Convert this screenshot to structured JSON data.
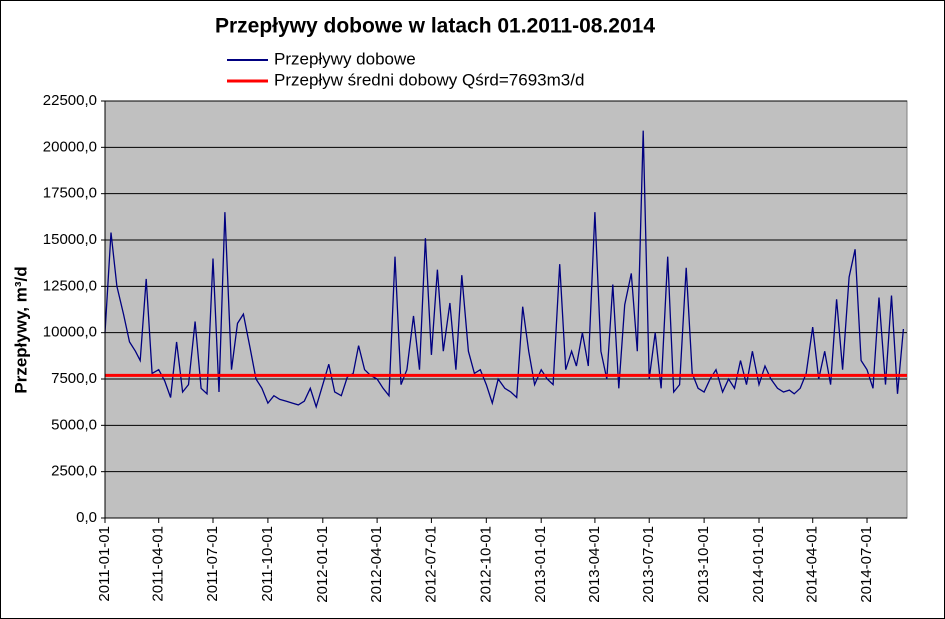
{
  "chart_data": {
    "type": "line",
    "title": "Przepływy dobowe w latach 01.2011-08.2014",
    "ylabel": "Przepływy, m³/d",
    "xlim": [
      "2011-01-01",
      "2014-09-06"
    ],
    "xticks": [
      "2011-01-01",
      "2011-04-01",
      "2011-07-01",
      "2011-10-01",
      "2012-01-01",
      "2012-04-01",
      "2012-07-01",
      "2012-10-01",
      "2013-01-01",
      "2013-04-01",
      "2013-07-01",
      "2013-10-01",
      "2014-01-01",
      "2014-04-01",
      "2014-07-01"
    ],
    "ylim": [
      0,
      22500
    ],
    "yticks": [
      {
        "value": 0,
        "label": "0,0"
      },
      {
        "value": 2500,
        "label": "2500,0"
      },
      {
        "value": 5000,
        "label": "5000,0"
      },
      {
        "value": 7500,
        "label": "7500,0"
      },
      {
        "value": 10000,
        "label": "10000,0"
      },
      {
        "value": 12500,
        "label": "12500,0"
      },
      {
        "value": 15000,
        "label": "15000,0"
      },
      {
        "value": 17500,
        "label": "17500,0"
      },
      {
        "value": 20000,
        "label": "20000,0"
      },
      {
        "value": 22500,
        "label": "22500,0"
      }
    ],
    "grid": true,
    "x": [
      "2011-01-01",
      "2011-01-11",
      "2011-01-21",
      "2011-02-01",
      "2011-02-11",
      "2011-02-21",
      "2011-03-01",
      "2011-03-11",
      "2011-03-21",
      "2011-04-01",
      "2011-04-11",
      "2011-04-21",
      "2011-05-01",
      "2011-05-11",
      "2011-05-21",
      "2011-06-01",
      "2011-06-11",
      "2011-06-21",
      "2011-07-01",
      "2011-07-11",
      "2011-07-21",
      "2011-08-01",
      "2011-08-11",
      "2011-08-21",
      "2011-09-01",
      "2011-09-11",
      "2011-09-21",
      "2011-10-01",
      "2011-10-11",
      "2011-10-21",
      "2011-11-01",
      "2011-11-11",
      "2011-11-21",
      "2011-12-01",
      "2011-12-11",
      "2011-12-21",
      "2012-01-01",
      "2012-01-11",
      "2012-01-21",
      "2012-02-01",
      "2012-02-11",
      "2012-02-21",
      "2012-03-01",
      "2012-03-11",
      "2012-03-21",
      "2012-04-01",
      "2012-04-11",
      "2012-04-21",
      "2012-05-01",
      "2012-05-11",
      "2012-05-21",
      "2012-06-01",
      "2012-06-11",
      "2012-06-21",
      "2012-07-01",
      "2012-07-11",
      "2012-07-21",
      "2012-08-01",
      "2012-08-11",
      "2012-08-21",
      "2012-09-01",
      "2012-09-11",
      "2012-09-21",
      "2012-10-01",
      "2012-10-11",
      "2012-10-21",
      "2012-11-01",
      "2012-11-11",
      "2012-11-21",
      "2012-12-01",
      "2012-12-11",
      "2012-12-21",
      "2013-01-01",
      "2013-01-11",
      "2013-01-21",
      "2013-02-01",
      "2013-02-11",
      "2013-02-21",
      "2013-03-01",
      "2013-03-11",
      "2013-03-21",
      "2013-04-01",
      "2013-04-11",
      "2013-04-21",
      "2013-05-01",
      "2013-05-11",
      "2013-05-21",
      "2013-06-01",
      "2013-06-11",
      "2013-06-21",
      "2013-07-01",
      "2013-07-11",
      "2013-07-21",
      "2013-08-01",
      "2013-08-11",
      "2013-08-21",
      "2013-09-01",
      "2013-09-11",
      "2013-09-21",
      "2013-10-01",
      "2013-10-11",
      "2013-10-21",
      "2013-11-01",
      "2013-11-11",
      "2013-11-21",
      "2013-12-01",
      "2013-12-11",
      "2013-12-21",
      "2014-01-01",
      "2014-01-11",
      "2014-01-21",
      "2014-02-01",
      "2014-02-11",
      "2014-02-21",
      "2014-03-01",
      "2014-03-11",
      "2014-03-21",
      "2014-04-01",
      "2014-04-11",
      "2014-04-21",
      "2014-05-01",
      "2014-05-11",
      "2014-05-21",
      "2014-06-01",
      "2014-06-11",
      "2014-06-21",
      "2014-07-01",
      "2014-07-11",
      "2014-07-21",
      "2014-08-01",
      "2014-08-11",
      "2014-08-21",
      "2014-08-31"
    ],
    "series": [
      {
        "name": "Przepływy dobowe",
        "color": "#000080",
        "values": [
          10000,
          15400,
          12500,
          11000,
          9500,
          9000,
          8500,
          12900,
          7800,
          8000,
          7400,
          6500,
          9500,
          6800,
          7200,
          10600,
          7000,
          6700,
          14000,
          6800,
          16500,
          8000,
          10500,
          11000,
          9200,
          7500,
          7000,
          6200,
          6600,
          6400,
          6300,
          6200,
          6100,
          6300,
          7000,
          6000,
          7200,
          8300,
          6800,
          6600,
          7600,
          7800,
          9300,
          8000,
          7700,
          7500,
          7000,
          6600,
          14100,
          7200,
          8000,
          10900,
          8000,
          15100,
          8800,
          13400,
          9000,
          11600,
          8000,
          13100,
          9000,
          7800,
          8000,
          7200,
          6200,
          7500,
          7000,
          6800,
          6500,
          11400,
          9000,
          7200,
          8000,
          7500,
          7200,
          13700,
          8000,
          9000,
          8200,
          10000,
          8200,
          16500,
          9000,
          7500,
          12600,
          7000,
          11500,
          13200,
          9000,
          20900,
          7500,
          10000,
          7000,
          14100,
          6800,
          7200,
          13500,
          7800,
          7000,
          6800,
          7500,
          8000,
          6800,
          7500,
          7000,
          8500,
          7200,
          9000,
          7200,
          8200,
          7500,
          7000,
          6800,
          6900,
          6700,
          7000,
          7800,
          10300,
          7500,
          9000,
          7200,
          11800,
          8000,
          13000,
          14500,
          8500,
          8000,
          7000,
          11900,
          7200,
          12000,
          6700,
          10200
        ]
      }
    ],
    "reference_line": {
      "name": "Przepływ średni dobowy Qśrd=7693m3/d",
      "color": "#ff0000",
      "value": 7693
    }
  }
}
